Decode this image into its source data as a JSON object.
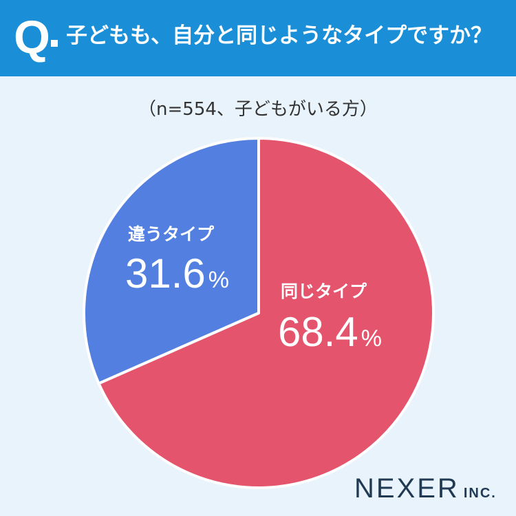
{
  "header": {
    "q_mark": "Q",
    "question": "子どもも、自分と同じようなタイプですか？"
  },
  "subtitle": "（n=554、子どもがいる方）",
  "chart_data": {
    "type": "pie",
    "n": 554,
    "slices": [
      {
        "label": "同じタイプ",
        "value": 68.4,
        "display": "68.4",
        "unit": "%",
        "color": "#e5546d"
      },
      {
        "label": "違うタイプ",
        "value": 31.6,
        "display": "31.6",
        "unit": "%",
        "color": "#527fe0"
      }
    ],
    "start": "12 o'clock",
    "direction": "clockwise"
  },
  "logo": {
    "main": "NEXER",
    "suffix": "INC."
  },
  "colors": {
    "header_bg": "#1a8fd8",
    "page_bg": "#e8f3fb",
    "same_type": "#e5546d",
    "different_type": "#527fe0"
  }
}
